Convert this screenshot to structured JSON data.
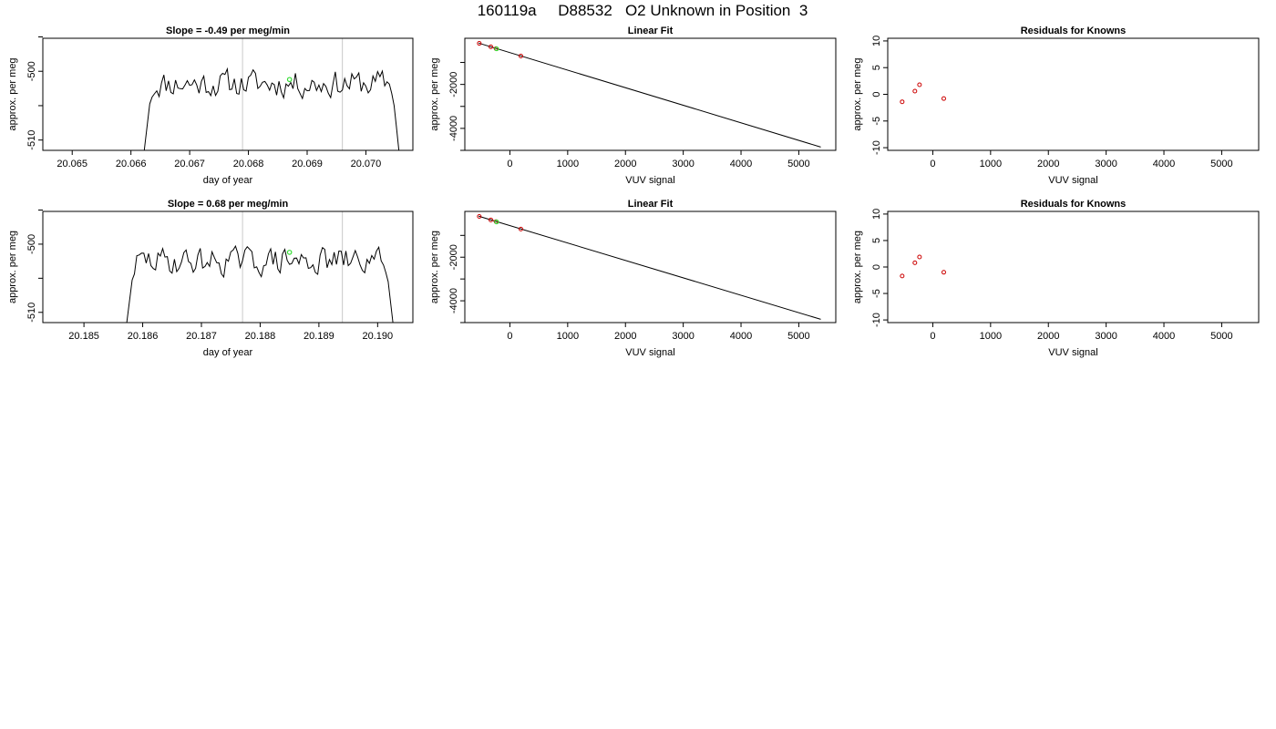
{
  "figure": {
    "title": "160119a     D88532   O2 Unknown in Position  3"
  },
  "colors": {
    "trace": "#000000",
    "known_point": "#cc0000",
    "unknown_point": "#33dd33",
    "window_line": "#c8c8c8",
    "fit_line": "#000000"
  },
  "chart_data": [
    {
      "type": "line",
      "title": "Slope =  -0.49  per meg/min",
      "xlabel": "day of year",
      "ylabel": "approx. per meg",
      "xlim": [
        20.0645,
        20.0708
      ],
      "ylim": [
        -511.5,
        -495.2
      ],
      "xticks": [
        20.065,
        20.066,
        20.067,
        20.068,
        20.069,
        20.07
      ],
      "xtick_labels": [
        "20.065",
        "20.066",
        "20.067",
        "20.068",
        "20.069",
        "20.070"
      ],
      "yticks": [
        -510,
        -505,
        -500,
        -495
      ],
      "ytick_labels": [
        "-510",
        "",
        "-500",
        ""
      ],
      "window_lines_x": [
        20.0679,
        20.0696
      ],
      "unknown_marker": {
        "x": 20.0687,
        "y": -501.2
      },
      "trace": {
        "start": 20.0662,
        "end": 20.0706,
        "mean": -501.8,
        "step": 4e-05,
        "seed": 11
      }
    },
    {
      "type": "scatter",
      "title": "Linear Fit",
      "xlabel": "VUV signal",
      "ylabel": "approx. per meg",
      "xlim": [
        -780,
        5640
      ],
      "ylim": [
        -5000,
        100
      ],
      "xticks": [
        0,
        1000,
        2000,
        3000,
        4000,
        5000
      ],
      "xtick_labels": [
        "0",
        "1000",
        "2000",
        "3000",
        "4000",
        "5000"
      ],
      "yticks": [
        -5000,
        -4000,
        -3000,
        -2000,
        -1000
      ],
      "ytick_labels": [
        "",
        "-4000",
        "",
        "-2000",
        ""
      ],
      "fit_line": {
        "x": [
          -540,
          5380
        ],
        "y": [
          -120,
          -4850
        ]
      },
      "known_points": [
        {
          "x": -530,
          "y": -130
        },
        {
          "x": -330,
          "y": -290
        },
        {
          "x": -240,
          "y": -370
        },
        {
          "x": 190,
          "y": -710
        }
      ],
      "unknown_point": {
        "x": -230,
        "y": -380
      }
    },
    {
      "type": "scatter",
      "title": "Residuals for Knowns",
      "xlabel": "VUV signal",
      "ylabel": "approx. per meg",
      "xlim": [
        -780,
        5640
      ],
      "ylim": [
        -10.5,
        10.5
      ],
      "xticks": [
        0,
        1000,
        2000,
        3000,
        4000,
        5000
      ],
      "xtick_labels": [
        "0",
        "1000",
        "2000",
        "3000",
        "4000",
        "5000"
      ],
      "yticks": [
        -10,
        -5,
        0,
        5,
        10
      ],
      "ytick_labels": [
        "-10",
        "-5",
        "0",
        "5",
        "10"
      ],
      "points": [
        {
          "x": -530,
          "y": -1.4
        },
        {
          "x": -310,
          "y": 0.6
        },
        {
          "x": -230,
          "y": 1.8
        },
        {
          "x": 190,
          "y": -0.8
        }
      ]
    },
    {
      "type": "line",
      "title": "Slope =  0.68  per meg/min",
      "xlabel": "day of year",
      "ylabel": "approx. per meg",
      "xlim": [
        20.1843,
        20.1906
      ],
      "ylim": [
        -511.5,
        -495.2
      ],
      "xticks": [
        20.185,
        20.186,
        20.187,
        20.188,
        20.189,
        20.19
      ],
      "xtick_labels": [
        "20.185",
        "20.186",
        "20.187",
        "20.188",
        "20.189",
        "20.190"
      ],
      "yticks": [
        -510,
        -505,
        -500,
        -495
      ],
      "ytick_labels": [
        "-510",
        "",
        "-500",
        ""
      ],
      "window_lines_x": [
        20.1877,
        20.1894
      ],
      "unknown_marker": {
        "x": 20.1885,
        "y": -501.2
      },
      "trace": {
        "start": 20.1857,
        "end": 20.1903,
        "mean": -502.5,
        "step": 4e-05,
        "seed": 29
      }
    },
    {
      "type": "scatter",
      "title": "Linear Fit",
      "xlabel": "VUV signal",
      "ylabel": "approx. per meg",
      "xlim": [
        -780,
        5640
      ],
      "ylim": [
        -5000,
        100
      ],
      "xticks": [
        0,
        1000,
        2000,
        3000,
        4000,
        5000
      ],
      "xtick_labels": [
        "0",
        "1000",
        "2000",
        "3000",
        "4000",
        "5000"
      ],
      "yticks": [
        -5000,
        -4000,
        -3000,
        -2000,
        -1000
      ],
      "ytick_labels": [
        "",
        "-4000",
        "",
        "-2000",
        ""
      ],
      "fit_line": {
        "x": [
          -540,
          5380
        ],
        "y": [
          -120,
          -4850
        ]
      },
      "known_points": [
        {
          "x": -530,
          "y": -130
        },
        {
          "x": -330,
          "y": -290
        },
        {
          "x": -240,
          "y": -370
        },
        {
          "x": 190,
          "y": -710
        }
      ],
      "unknown_point": {
        "x": -230,
        "y": -380
      }
    },
    {
      "type": "scatter",
      "title": "Residuals for Knowns",
      "xlabel": "VUV signal",
      "ylabel": "approx. per meg",
      "xlim": [
        -780,
        5640
      ],
      "ylim": [
        -10.5,
        10.5
      ],
      "xticks": [
        0,
        1000,
        2000,
        3000,
        4000,
        5000
      ],
      "xtick_labels": [
        "0",
        "1000",
        "2000",
        "3000",
        "4000",
        "5000"
      ],
      "yticks": [
        -10,
        -5,
        0,
        5,
        10
      ],
      "ytick_labels": [
        "-10",
        "-5",
        "0",
        "5",
        "10"
      ],
      "points": [
        {
          "x": -530,
          "y": -1.7
        },
        {
          "x": -310,
          "y": 0.8
        },
        {
          "x": -230,
          "y": 1.9
        },
        {
          "x": 190,
          "y": -1.0
        }
      ]
    }
  ]
}
